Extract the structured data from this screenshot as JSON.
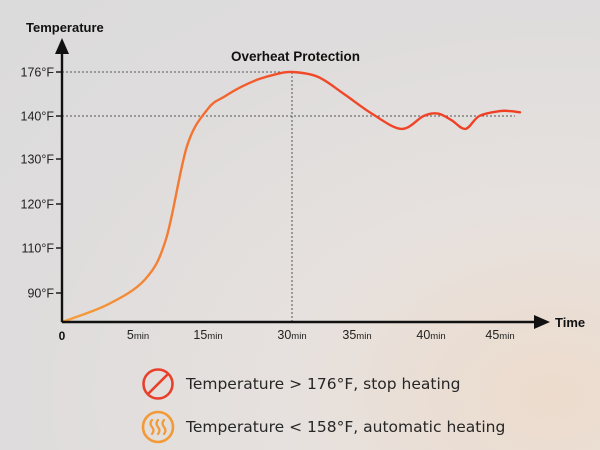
{
  "chart_data": {
    "type": "line",
    "ylabel": "Temperature",
    "xlabel": "Time",
    "annotation": "Overheat Protection",
    "origin_label": "0",
    "y_ticks": [
      {
        "label": "90°F",
        "value": 90
      },
      {
        "label": "110°F",
        "value": 110
      },
      {
        "label": "120°F",
        "value": 120
      },
      {
        "label": "130°F",
        "value": 130
      },
      {
        "label": "140°F",
        "value": 140
      },
      {
        "label": "176°F",
        "value": 176
      }
    ],
    "x_ticks": [
      {
        "num": "5",
        "unit": "min",
        "value": 5
      },
      {
        "num": "15",
        "unit": "min",
        "value": 15
      },
      {
        "num": "30",
        "unit": "min",
        "value": 30
      },
      {
        "num": "35",
        "unit": "min",
        "value": 35
      },
      {
        "num": "40",
        "unit": "min",
        "value": 40
      },
      {
        "num": "45",
        "unit": "min",
        "value": 45
      }
    ],
    "reference_lines": [
      {
        "value": 176,
        "style": "dotted"
      },
      {
        "value": 140,
        "style": "dotted"
      }
    ],
    "peak": {
      "x": 30,
      "y": 176
    },
    "series": [
      {
        "name": "temperature",
        "points": [
          {
            "x": 0,
            "y": 80
          },
          {
            "x": 3,
            "y": 86
          },
          {
            "x": 6,
            "y": 96
          },
          {
            "x": 9,
            "y": 112
          },
          {
            "x": 12,
            "y": 133
          },
          {
            "x": 15,
            "y": 146
          },
          {
            "x": 18,
            "y": 156
          },
          {
            "x": 21,
            "y": 164
          },
          {
            "x": 24,
            "y": 170
          },
          {
            "x": 27,
            "y": 174
          },
          {
            "x": 30,
            "y": 176
          },
          {
            "x": 32,
            "y": 172
          },
          {
            "x": 34,
            "y": 158
          },
          {
            "x": 36,
            "y": 142
          },
          {
            "x": 38,
            "y": 137
          },
          {
            "x": 39.5,
            "y": 140
          },
          {
            "x": 40.5,
            "y": 142
          },
          {
            "x": 41.5,
            "y": 139
          },
          {
            "x": 42.5,
            "y": 137
          },
          {
            "x": 43.5,
            "y": 140
          },
          {
            "x": 45,
            "y": 144
          },
          {
            "x": 46,
            "y": 144
          },
          {
            "x": 47,
            "y": 143
          }
        ]
      }
    ],
    "colors": {
      "line": "#f04a2a",
      "line_start": "#f5a03a",
      "axis": "#111111",
      "guide": "#555555"
    }
  },
  "legend": [
    {
      "text": "Temperature > 176°F, stop heating",
      "icon": "no-sign-icon",
      "color": "#e8402a"
    },
    {
      "text": "Temperature < 158°F, automatic heating",
      "icon": "heat-waves-icon",
      "color": "#f29a38"
    }
  ]
}
